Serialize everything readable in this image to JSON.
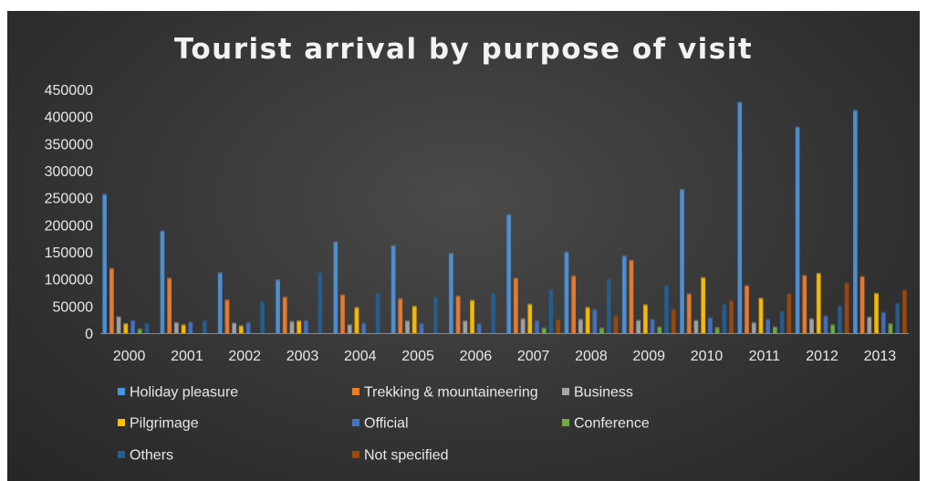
{
  "chart_data": {
    "type": "bar",
    "title": "Tourist arrival by purpose of visit",
    "xlabel": "",
    "ylabel": "",
    "ylim": [
      0,
      450000
    ],
    "yticks": [
      "0",
      "50000",
      "100000",
      "150000",
      "200000",
      "250000",
      "300000",
      "350000",
      "400000",
      "450000"
    ],
    "grid": false,
    "legend_position": "bottom",
    "categories": [
      "2000",
      "2001",
      "2002",
      "2003",
      "2004",
      "2005",
      "2006",
      "2007",
      "2008",
      "2009",
      "2010",
      "2011",
      "2012",
      "2013"
    ],
    "series": [
      {
        "name": "Holiday pleasure",
        "color": "#4f93d8",
        "values": [
          255000,
          187000,
          110000,
          97000,
          167000,
          160000,
          146000,
          217000,
          148000,
          141000,
          264000,
          425000,
          379000,
          410000
        ]
      },
      {
        "name": "Trekking & mountaineering",
        "color": "#ed7d31",
        "values": [
          118000,
          100000,
          60000,
          65000,
          69000,
          62000,
          67000,
          100000,
          104000,
          133000,
          71000,
          86000,
          105000,
          103000
        ]
      },
      {
        "name": "Business",
        "color": "#a5a5a5",
        "values": [
          29000,
          18000,
          17000,
          20000,
          14000,
          21000,
          21000,
          25000,
          24000,
          22000,
          22000,
          18000,
          25000,
          28000
        ]
      },
      {
        "name": "Pilgrimage",
        "color": "#ffc000",
        "values": [
          16000,
          14000,
          12000,
          21000,
          46000,
          48000,
          59000,
          52000,
          46000,
          51000,
          101000,
          63000,
          109000,
          72000
        ]
      },
      {
        "name": "Official",
        "color": "#4472c4",
        "values": [
          22000,
          19000,
          18000,
          22000,
          17000,
          16000,
          16000,
          21000,
          42000,
          24000,
          27000,
          24000,
          30000,
          37000
        ]
      },
      {
        "name": "Conference",
        "color": "#70ad47",
        "values": [
          6000,
          0,
          0,
          0,
          0,
          0,
          0,
          8000,
          8000,
          10000,
          9000,
          10000,
          14000,
          16000
        ]
      },
      {
        "name": "Others",
        "color": "#255e91",
        "values": [
          17000,
          22000,
          57000,
          110000,
          72000,
          66000,
          72000,
          79000,
          99000,
          86000,
          52000,
          38000,
          49000,
          54000
        ]
      },
      {
        "name": "Not specified",
        "color": "#9e480e",
        "values": [
          0,
          0,
          0,
          0,
          0,
          0,
          0,
          23000,
          30000,
          42000,
          58000,
          71000,
          91000,
          78000
        ]
      }
    ]
  }
}
